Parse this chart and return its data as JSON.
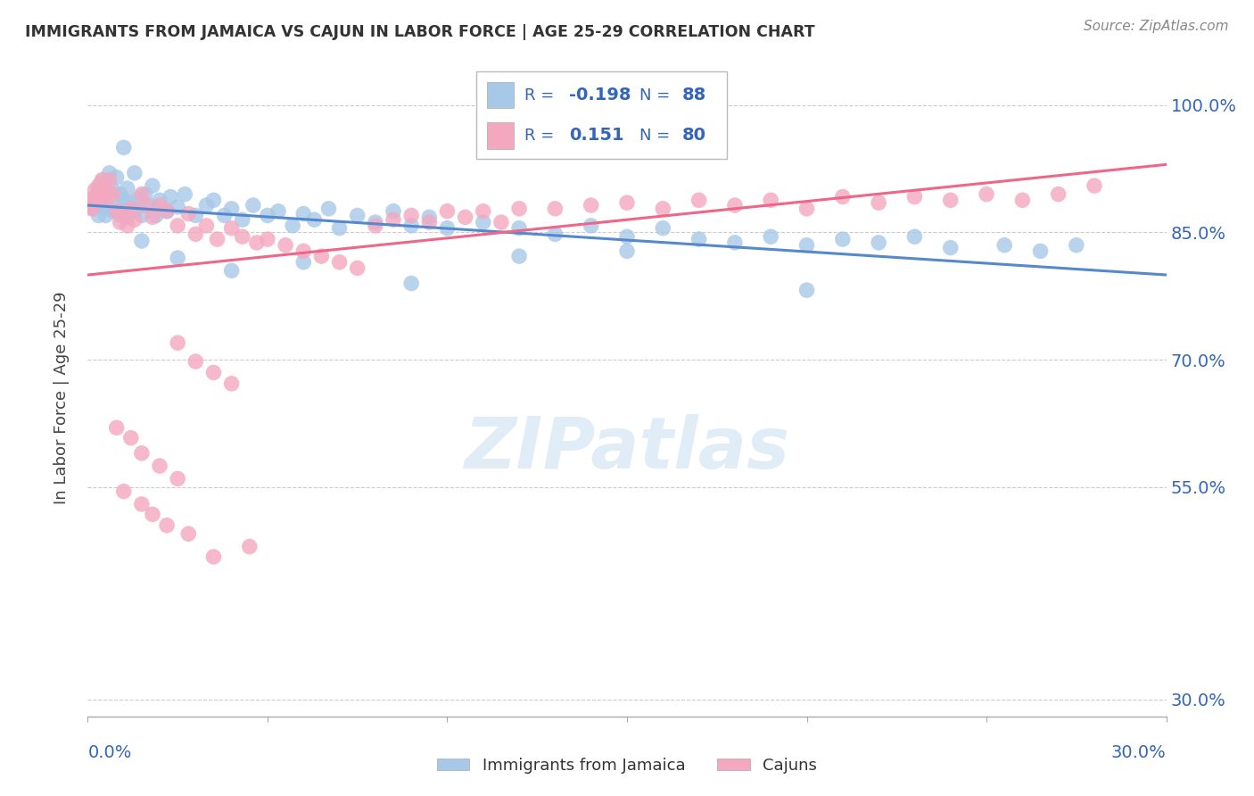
{
  "title": "IMMIGRANTS FROM JAMAICA VS CAJUN IN LABOR FORCE | AGE 25-29 CORRELATION CHART",
  "source": "Source: ZipAtlas.com",
  "ylabel": "In Labor Force | Age 25-29",
  "legend_label1": "Immigrants from Jamaica",
  "legend_label2": "Cajuns",
  "R1": "-0.198",
  "N1": "88",
  "R2": "0.151",
  "N2": "80",
  "color_blue": "#a8c8e8",
  "color_pink": "#f4a8c0",
  "color_blue_line": "#5588cc",
  "color_pink_line": "#ee6688",
  "color_blue_text": "#3366bb",
  "color_axis_text": "#3366bb",
  "xlim": [
    0.0,
    0.3
  ],
  "ylim": [
    0.28,
    1.03
  ],
  "yticks": [
    0.3,
    0.55,
    0.7,
    0.85,
    1.0
  ],
  "ytick_labels": [
    "30.0%",
    "55.0%",
    "70.0%",
    "85.0%",
    "100.0%"
  ],
  "xticks": [
    0.0,
    0.05,
    0.1,
    0.15,
    0.2,
    0.25,
    0.3
  ],
  "jamaica_x": [
    0.0005,
    0.001,
    0.001,
    0.0015,
    0.002,
    0.002,
    0.0025,
    0.003,
    0.003,
    0.003,
    0.0035,
    0.004,
    0.004,
    0.0045,
    0.005,
    0.005,
    0.005,
    0.006,
    0.006,
    0.007,
    0.007,
    0.008,
    0.008,
    0.009,
    0.009,
    0.01,
    0.01,
    0.011,
    0.011,
    0.012,
    0.013,
    0.013,
    0.014,
    0.015,
    0.016,
    0.017,
    0.018,
    0.019,
    0.02,
    0.022,
    0.023,
    0.025,
    0.027,
    0.03,
    0.033,
    0.035,
    0.038,
    0.04,
    0.043,
    0.046,
    0.05,
    0.053,
    0.057,
    0.06,
    0.063,
    0.067,
    0.07,
    0.075,
    0.08,
    0.085,
    0.09,
    0.095,
    0.1,
    0.11,
    0.12,
    0.13,
    0.14,
    0.15,
    0.16,
    0.17,
    0.18,
    0.19,
    0.2,
    0.21,
    0.22,
    0.23,
    0.24,
    0.255,
    0.265,
    0.275,
    0.2,
    0.15,
    0.12,
    0.09,
    0.06,
    0.04,
    0.025,
    0.015
  ],
  "jamaica_y": [
    0.885,
    0.88,
    0.882,
    0.878,
    0.89,
    0.886,
    0.892,
    0.9,
    0.888,
    0.87,
    0.895,
    0.91,
    0.885,
    0.905,
    0.895,
    0.882,
    0.87,
    0.92,
    0.878,
    0.9,
    0.875,
    0.915,
    0.88,
    0.895,
    0.87,
    0.95,
    0.888,
    0.902,
    0.868,
    0.885,
    0.92,
    0.875,
    0.89,
    0.87,
    0.895,
    0.882,
    0.905,
    0.87,
    0.888,
    0.875,
    0.892,
    0.88,
    0.895,
    0.87,
    0.882,
    0.888,
    0.87,
    0.878,
    0.865,
    0.882,
    0.87,
    0.875,
    0.858,
    0.872,
    0.865,
    0.878,
    0.855,
    0.87,
    0.862,
    0.875,
    0.858,
    0.868,
    0.855,
    0.862,
    0.855,
    0.848,
    0.858,
    0.845,
    0.855,
    0.842,
    0.838,
    0.845,
    0.835,
    0.842,
    0.838,
    0.845,
    0.832,
    0.835,
    0.828,
    0.835,
    0.782,
    0.828,
    0.822,
    0.79,
    0.815,
    0.805,
    0.82,
    0.84
  ],
  "cajun_x": [
    0.0005,
    0.001,
    0.001,
    0.0015,
    0.002,
    0.002,
    0.003,
    0.003,
    0.004,
    0.004,
    0.005,
    0.005,
    0.006,
    0.007,
    0.008,
    0.009,
    0.01,
    0.011,
    0.012,
    0.013,
    0.015,
    0.016,
    0.018,
    0.02,
    0.022,
    0.025,
    0.028,
    0.03,
    0.033,
    0.036,
    0.04,
    0.043,
    0.047,
    0.05,
    0.055,
    0.06,
    0.065,
    0.07,
    0.075,
    0.08,
    0.085,
    0.09,
    0.095,
    0.1,
    0.105,
    0.11,
    0.115,
    0.12,
    0.13,
    0.14,
    0.15,
    0.16,
    0.17,
    0.18,
    0.19,
    0.2,
    0.21,
    0.22,
    0.23,
    0.24,
    0.25,
    0.26,
    0.27,
    0.28,
    0.025,
    0.03,
    0.035,
    0.04,
    0.008,
    0.012,
    0.015,
    0.02,
    0.025,
    0.01,
    0.015,
    0.018,
    0.022,
    0.028,
    0.035,
    0.045
  ],
  "cajun_y": [
    0.888,
    0.882,
    0.878,
    0.89,
    0.9,
    0.885,
    0.905,
    0.892,
    0.912,
    0.895,
    0.902,
    0.888,
    0.912,
    0.895,
    0.875,
    0.862,
    0.872,
    0.858,
    0.878,
    0.865,
    0.895,
    0.882,
    0.868,
    0.882,
    0.875,
    0.858,
    0.872,
    0.848,
    0.858,
    0.842,
    0.855,
    0.845,
    0.838,
    0.842,
    0.835,
    0.828,
    0.822,
    0.815,
    0.808,
    0.858,
    0.865,
    0.87,
    0.862,
    0.875,
    0.868,
    0.875,
    0.862,
    0.878,
    0.878,
    0.882,
    0.885,
    0.878,
    0.888,
    0.882,
    0.888,
    0.878,
    0.892,
    0.885,
    0.892,
    0.888,
    0.895,
    0.888,
    0.895,
    0.905,
    0.72,
    0.698,
    0.685,
    0.672,
    0.62,
    0.608,
    0.59,
    0.575,
    0.56,
    0.545,
    0.53,
    0.518,
    0.505,
    0.495,
    0.468,
    0.48
  ]
}
